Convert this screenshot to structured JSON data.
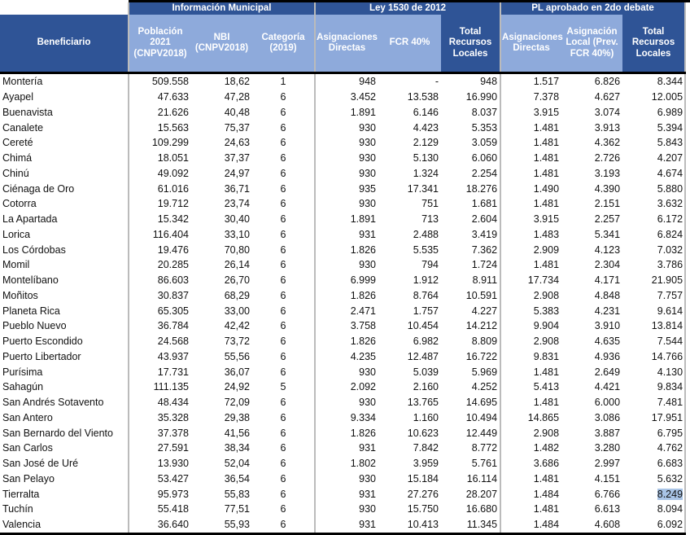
{
  "groups": {
    "municipal": "Información Municipal",
    "ley": "Ley 1530 de 2012",
    "pl": "PL aprobado en 2do debate"
  },
  "columns": {
    "beneficiario": "Beneficiario",
    "poblacion": "Población 2021 (CNPV2018)",
    "nbi": "NBI (CNPV2018)",
    "categoria": "Categoría (2019)",
    "asig_directas": "Asignaciones Directas",
    "fcr": "FCR 40%",
    "total_locales": "Total Recursos Locales",
    "pl_asig_directas": "Asignaciones Directas",
    "pl_asig_local": "Asignación Local (Prev. FCR 40%)",
    "pl_total": "Total Recursos Locales"
  },
  "rows": [
    [
      "Montería",
      "509.558",
      "18,62",
      "1",
      "948",
      "-",
      "948",
      "1.517",
      "6.826",
      "8.344"
    ],
    [
      "Ayapel",
      "47.633",
      "47,28",
      "6",
      "3.452",
      "13.538",
      "16.990",
      "7.378",
      "4.627",
      "12.005"
    ],
    [
      "Buenavista",
      "21.626",
      "40,48",
      "6",
      "1.891",
      "6.146",
      "8.037",
      "3.915",
      "3.074",
      "6.989"
    ],
    [
      "Canalete",
      "15.563",
      "75,37",
      "6",
      "930",
      "4.423",
      "5.353",
      "1.481",
      "3.913",
      "5.394"
    ],
    [
      "Cereté",
      "109.299",
      "24,63",
      "6",
      "930",
      "2.129",
      "3.059",
      "1.481",
      "4.362",
      "5.843"
    ],
    [
      "Chimá",
      "18.051",
      "37,37",
      "6",
      "930",
      "5.130",
      "6.060",
      "1.481",
      "2.726",
      "4.207"
    ],
    [
      "Chinú",
      "49.092",
      "24,97",
      "6",
      "930",
      "1.324",
      "2.254",
      "1.481",
      "3.193",
      "4.674"
    ],
    [
      "Ciénaga de Oro",
      "61.016",
      "36,71",
      "6",
      "935",
      "17.341",
      "18.276",
      "1.490",
      "4.390",
      "5.880"
    ],
    [
      "Cotorra",
      "19.712",
      "23,74",
      "6",
      "930",
      "751",
      "1.681",
      "1.481",
      "2.151",
      "3.632"
    ],
    [
      "La Apartada",
      "15.342",
      "30,40",
      "6",
      "1.891",
      "713",
      "2.604",
      "3.915",
      "2.257",
      "6.172"
    ],
    [
      "Lorica",
      "116.404",
      "33,10",
      "6",
      "931",
      "2.488",
      "3.419",
      "1.483",
      "5.341",
      "6.824"
    ],
    [
      "Los Córdobas",
      "19.476",
      "70,80",
      "6",
      "1.826",
      "5.535",
      "7.362",
      "2.909",
      "4.123",
      "7.032"
    ],
    [
      "Momil",
      "20.285",
      "26,14",
      "6",
      "930",
      "794",
      "1.724",
      "1.481",
      "2.304",
      "3.786"
    ],
    [
      "Montelíbano",
      "86.603",
      "26,70",
      "6",
      "6.999",
      "1.912",
      "8.911",
      "17.734",
      "4.171",
      "21.905"
    ],
    [
      "Moñitos",
      "30.837",
      "68,29",
      "6",
      "1.826",
      "8.764",
      "10.591",
      "2.908",
      "4.848",
      "7.757"
    ],
    [
      "Planeta Rica",
      "65.305",
      "33,00",
      "6",
      "2.471",
      "1.757",
      "4.227",
      "5.383",
      "4.231",
      "9.614"
    ],
    [
      "Pueblo Nuevo",
      "36.784",
      "42,42",
      "6",
      "3.758",
      "10.454",
      "14.212",
      "9.904",
      "3.910",
      "13.814"
    ],
    [
      "Puerto Escondido",
      "24.568",
      "73,72",
      "6",
      "1.826",
      "6.982",
      "8.809",
      "2.908",
      "4.635",
      "7.544"
    ],
    [
      "Puerto Libertador",
      "43.937",
      "55,56",
      "6",
      "4.235",
      "12.487",
      "16.722",
      "9.831",
      "4.936",
      "14.766"
    ],
    [
      "Purísima",
      "17.731",
      "36,07",
      "6",
      "930",
      "5.039",
      "5.969",
      "1.481",
      "2.649",
      "4.130"
    ],
    [
      "Sahagún",
      "111.135",
      "24,92",
      "5",
      "2.092",
      "2.160",
      "4.252",
      "5.413",
      "4.421",
      "9.834"
    ],
    [
      "San Andrés Sotavento",
      "48.434",
      "72,09",
      "6",
      "930",
      "13.765",
      "14.695",
      "1.481",
      "6.000",
      "7.481"
    ],
    [
      "San Antero",
      "35.328",
      "29,38",
      "6",
      "9.334",
      "1.160",
      "10.494",
      "14.865",
      "3.086",
      "17.951"
    ],
    [
      "San Bernardo del Viento",
      "37.378",
      "41,56",
      "6",
      "1.826",
      "10.623",
      "12.449",
      "2.908",
      "3.887",
      "6.795"
    ],
    [
      "San Carlos",
      "27.591",
      "38,34",
      "6",
      "931",
      "7.842",
      "8.772",
      "1.482",
      "3.280",
      "4.762"
    ],
    [
      "San José de Uré",
      "13.930",
      "52,04",
      "6",
      "1.802",
      "3.959",
      "5.761",
      "3.686",
      "2.997",
      "6.683"
    ],
    [
      "San Pelayo",
      "53.427",
      "36,54",
      "6",
      "930",
      "15.184",
      "16.114",
      "1.481",
      "4.151",
      "5.632"
    ],
    [
      "Tierralta",
      "95.973",
      "55,83",
      "6",
      "931",
      "27.276",
      "28.207",
      "1.484",
      "6.766",
      "8.249"
    ],
    [
      "Tuchín",
      "55.418",
      "77,51",
      "6",
      "930",
      "15.750",
      "16.680",
      "1.481",
      "6.613",
      "8.094"
    ],
    [
      "Valencia",
      "36.640",
      "55,93",
      "6",
      "931",
      "10.413",
      "11.345",
      "1.484",
      "4.608",
      "6.092"
    ]
  ],
  "selected_cell": {
    "row": 27,
    "col": 9
  },
  "colors": {
    "header_dark": "#2f5496",
    "header_light": "#8eaadb",
    "selection": "#a9c4e6"
  }
}
